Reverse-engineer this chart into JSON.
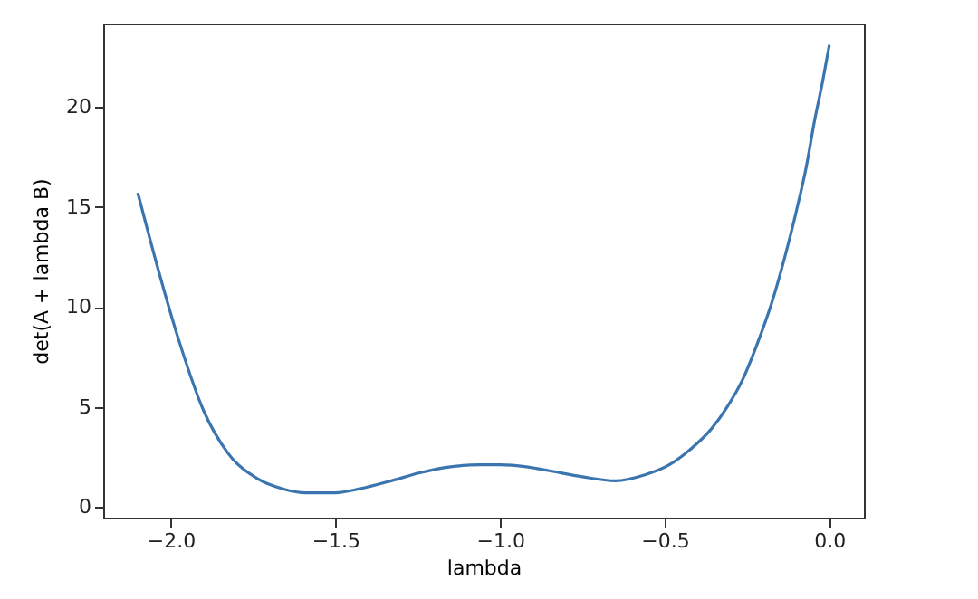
{
  "chart_data": {
    "type": "line",
    "xlabel": "lambda",
    "ylabel": "det(A + lambda B)",
    "x": [
      -2.1,
      -2.042,
      -1.973,
      -1.9,
      -1.827,
      -1.736,
      -1.66,
      -1.59,
      -1.5,
      -1.426,
      -1.33,
      -1.244,
      -1.15,
      -1.062,
      -1.0,
      -0.92,
      -0.85,
      -0.75,
      -0.65,
      -0.56,
      -0.486,
      -0.42,
      -0.358,
      -0.31,
      -0.265,
      -0.22,
      -0.173,
      -0.135,
      -0.1,
      -0.07,
      -0.045,
      -0.02,
      0.0
    ],
    "series": [
      {
        "color": "#3b75af",
        "values": [
          15.7,
          12.1,
          8.2,
          4.8,
          2.7,
          1.4,
          0.9,
          0.7,
          0.7,
          0.9,
          1.3,
          1.7,
          2.0,
          2.1,
          2.1,
          2.0,
          1.8,
          1.5,
          1.3,
          1.6,
          2.1,
          2.9,
          3.9,
          5.0,
          6.3,
          8.1,
          10.3,
          12.5,
          14.8,
          17.0,
          19.3,
          21.3,
          23.1
        ]
      }
    ],
    "xlim": [
      -2.205,
      0.105
    ],
    "ylim": [
      -0.54,
      24.17
    ],
    "xticks": [
      {
        "value": -2.0,
        "label": "−2.0"
      },
      {
        "value": -1.5,
        "label": "−1.5"
      },
      {
        "value": -1.0,
        "label": "−1.0"
      },
      {
        "value": -0.5,
        "label": "−0.5"
      },
      {
        "value": 0.0,
        "label": "0.0"
      }
    ],
    "yticks": [
      0,
      5,
      10,
      15,
      20
    ],
    "grid": false
  }
}
